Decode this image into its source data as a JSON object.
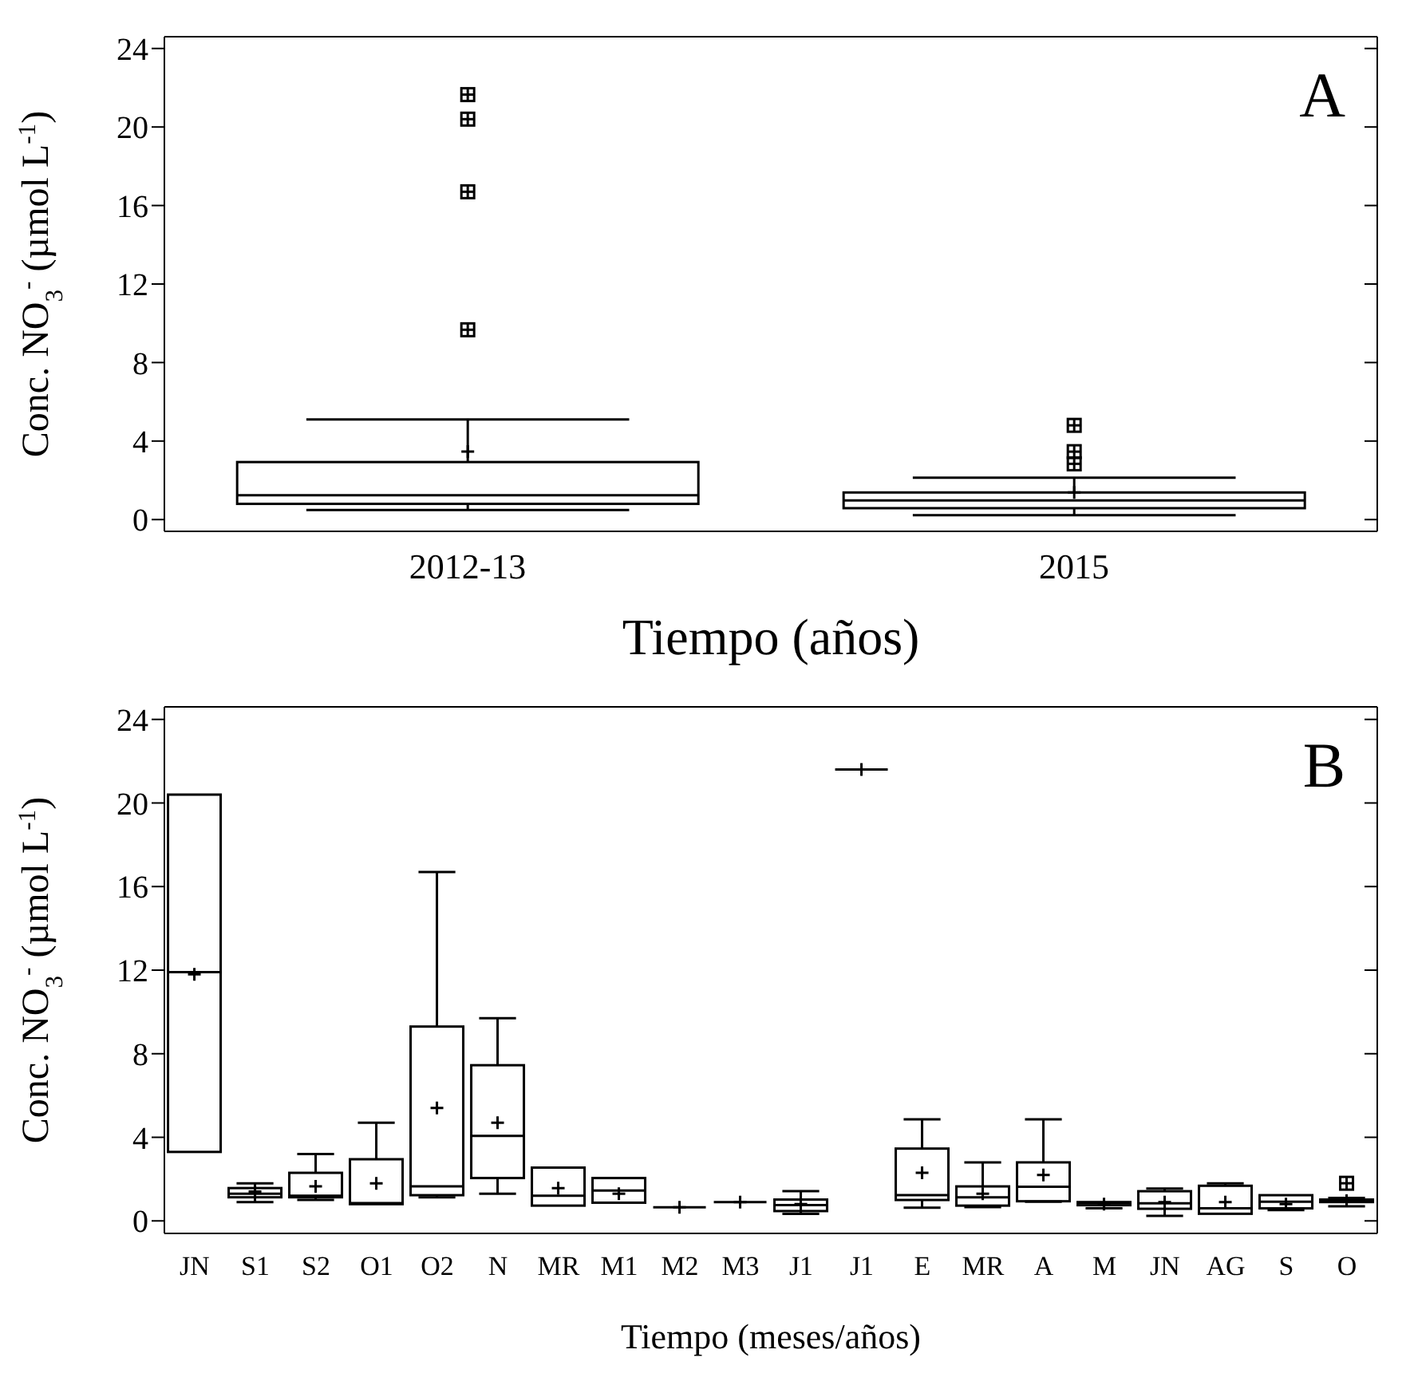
{
  "chart_data": [
    {
      "type": "box",
      "categories": [
        "2012-13",
        "2015"
      ],
      "xlabel": "Tiempo (años)",
      "ylabel": "Conc.  NO$_{3}$$^{-}$  (µmol L$^{-1}$)",
      "ylim": [
        -0.6,
        24.6
      ],
      "yticks": [
        0,
        4,
        8,
        12,
        16,
        20,
        24
      ],
      "annotations": [
        "A"
      ],
      "boxes": [
        {
          "low": 0.49,
          "q1": 0.8,
          "median": 1.24,
          "q3": 2.93,
          "high": 5.1,
          "mean": 3.46,
          "outliers": [
            21.65,
            20.4,
            16.7,
            9.67
          ]
        },
        {
          "low": 0.22,
          "q1": 0.58,
          "median": 0.98,
          "q3": 1.38,
          "high": 2.13,
          "mean": 1.38,
          "outliers": [
            4.8,
            3.46,
            2.84
          ]
        }
      ]
    },
    {
      "type": "box",
      "categories": [
        "JN",
        "S1",
        "S2",
        "O1",
        "O2",
        "N",
        "MR",
        "M1",
        "M2",
        "M3",
        "J1",
        "J1",
        "E",
        "MR",
        "A",
        "M",
        "JN",
        "AG",
        "S",
        "O"
      ],
      "xlabel": "Tiempo (meses/años)",
      "ylabel": "Conc.  NO$_{3}$$^{-}$  (µmol L$^{-1}$)",
      "ylim": [
        -0.6,
        24.6
      ],
      "yticks": [
        0,
        4,
        8,
        12,
        16,
        20,
        24
      ],
      "annotations": [
        "B"
      ],
      "boxes": [
        {
          "low": 3.3,
          "q1": 3.3,
          "median": 11.9,
          "q3": 20.4,
          "high": 20.4,
          "mean": 11.8
        },
        {
          "low": 0.9,
          "q1": 1.13,
          "median": 1.3,
          "q3": 1.57,
          "high": 1.8,
          "mean": 1.4
        },
        {
          "low": 1.0,
          "q1": 1.13,
          "median": 1.2,
          "q3": 2.3,
          "high": 3.2,
          "mean": 1.65
        },
        {
          "low": 0.8,
          "q1": 0.8,
          "median": 0.85,
          "q3": 2.95,
          "high": 4.7,
          "mean": 1.8
        },
        {
          "low": 1.13,
          "q1": 1.23,
          "median": 1.65,
          "q3": 9.3,
          "high": 16.7,
          "mean": 5.4
        },
        {
          "low": 1.3,
          "q1": 2.05,
          "median": 4.07,
          "q3": 7.45,
          "high": 9.7,
          "mean": 4.7
        },
        {
          "low": 0.73,
          "q1": 0.73,
          "median": 1.2,
          "q3": 2.55,
          "high": 2.55,
          "mean": 1.57
        },
        {
          "low": 0.87,
          "q1": 0.87,
          "median": 1.45,
          "q3": 2.05,
          "high": 2.05,
          "mean": 1.3
        },
        {
          "low": 0.65,
          "q1": 0.65,
          "median": 0.65,
          "q3": 0.65,
          "high": 0.65,
          "mean": 0.65
        },
        {
          "low": 0.9,
          "q1": 0.9,
          "median": 0.9,
          "q3": 0.9,
          "high": 0.9,
          "mean": 0.9
        },
        {
          "low": 0.34,
          "q1": 0.47,
          "median": 0.76,
          "q3": 1.02,
          "high": 1.42,
          "mean": 0.8
        },
        {
          "low": 21.6,
          "q1": 21.6,
          "median": 21.6,
          "q3": 21.6,
          "high": 21.6,
          "mean": 21.6
        },
        {
          "low": 0.63,
          "q1": 1.0,
          "median": 1.23,
          "q3": 3.46,
          "high": 4.86,
          "mean": 2.3
        },
        {
          "low": 0.66,
          "q1": 0.73,
          "median": 1.13,
          "q3": 1.65,
          "high": 2.8,
          "mean": 1.3
        },
        {
          "low": 0.92,
          "q1": 0.94,
          "median": 1.63,
          "q3": 2.8,
          "high": 4.86,
          "mean": 2.2
        },
        {
          "low": 0.6,
          "q1": 0.75,
          "median": 0.85,
          "q3": 0.9,
          "high": 0.9,
          "mean": 0.8
        },
        {
          "low": 0.24,
          "q1": 0.58,
          "median": 0.84,
          "q3": 1.42,
          "high": 1.55,
          "mean": 0.9
        },
        {
          "low": 0.34,
          "q1": 0.34,
          "median": 0.6,
          "q3": 1.68,
          "high": 1.8,
          "mean": 0.9
        },
        {
          "low": 0.52,
          "q1": 0.6,
          "median": 0.92,
          "q3": 1.23,
          "high": 1.23,
          "mean": 0.8
        },
        {
          "low": 0.7,
          "q1": 0.9,
          "median": 0.97,
          "q3": 1.02,
          "high": 1.1,
          "mean": 0.97,
          "outliers": [
            1.8
          ]
        }
      ]
    }
  ]
}
